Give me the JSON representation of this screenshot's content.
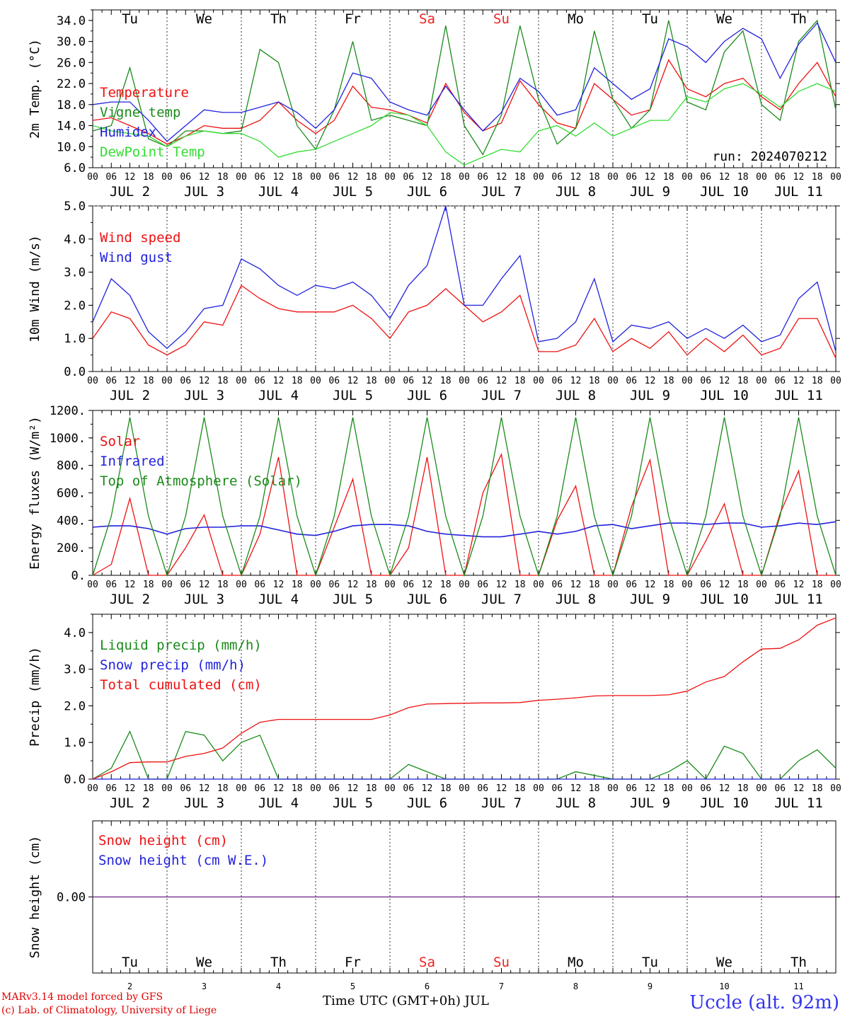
{
  "colors": {
    "temp": "#ee1111",
    "vigne": "#1a8a1a",
    "humidex": "#2222dd",
    "dewpoint": "#33dd33",
    "weekend": "#ee2222",
    "snow_line": "#7a3a8a"
  },
  "chart_data": [
    {
      "type": "line",
      "id": "temp",
      "ylabel": "2m Temp. (°C)",
      "ylim": [
        6.0,
        36.0
      ],
      "yticks": [
        "34.0",
        "30.0",
        "26.0",
        "22.0",
        "18.0",
        "14.0",
        "10.0",
        "6.0"
      ],
      "ytick_values": [
        34,
        30,
        26,
        22,
        18,
        14,
        10,
        6
      ],
      "x_unit": "hours since 00 UTC JUL 2",
      "x": [
        0,
        6,
        12,
        18,
        24,
        30,
        36,
        42,
        48,
        54,
        60,
        66,
        72,
        78,
        84,
        90,
        96,
        102,
        108,
        114,
        120,
        126,
        132,
        138,
        144,
        150,
        156,
        162,
        168,
        174,
        180,
        186,
        192,
        198,
        204,
        210,
        216,
        222,
        228,
        234,
        240
      ],
      "annotation": "run: 2024070212",
      "series": [
        {
          "name": "Temperature",
          "color": "#ee1111",
          "values": [
            15.0,
            15.5,
            14.0,
            12.5,
            10.5,
            12.0,
            14.0,
            13.5,
            13.5,
            15.0,
            18.5,
            15.0,
            12.5,
            15.0,
            21.5,
            17.5,
            17.0,
            16.0,
            14.5,
            22.0,
            16.5,
            13.0,
            14.5,
            22.5,
            18.0,
            14.5,
            13.5,
            22.0,
            19.0,
            16.0,
            17.0,
            26.5,
            21.0,
            19.5,
            22.0,
            23.0,
            19.5,
            17.0,
            22.0,
            26.0,
            19.5
          ]
        },
        {
          "name": "Vigne temp",
          "color": "#1a8a1a",
          "values": [
            13.0,
            14.0,
            25.0,
            11.5,
            10.0,
            13.0,
            13.0,
            12.5,
            13.0,
            28.5,
            26.0,
            14.0,
            9.5,
            17.0,
            30.0,
            15.0,
            16.0,
            15.0,
            14.0,
            33.0,
            14.0,
            8.5,
            16.0,
            33.0,
            19.0,
            10.5,
            13.5,
            32.0,
            19.0,
            13.5,
            17.0,
            34.0,
            18.5,
            17.0,
            28.0,
            32.0,
            18.0,
            15.0,
            30.0,
            34.0,
            17.0
          ]
        },
        {
          "name": "Humidex",
          "color": "#2222dd",
          "values": [
            18.0,
            18.5,
            18.5,
            15.0,
            11.0,
            14.0,
            17.0,
            16.5,
            16.5,
            17.5,
            18.5,
            16.5,
            13.5,
            17.0,
            24.0,
            23.0,
            18.5,
            17.0,
            16.0,
            21.5,
            17.0,
            13.0,
            16.5,
            23.0,
            20.5,
            16.0,
            17.0,
            25.0,
            22.0,
            19.0,
            21.0,
            30.5,
            29.0,
            26.0,
            30.0,
            32.5,
            30.5,
            23.0,
            29.5,
            33.5,
            26.0
          ]
        },
        {
          "name": "DewPoint Temp",
          "color": "#33dd33",
          "values": [
            14.0,
            13.0,
            12.5,
            12.0,
            10.0,
            12.0,
            13.0,
            12.5,
            12.5,
            11.0,
            8.0,
            9.0,
            9.5,
            11.0,
            12.5,
            14.0,
            16.5,
            16.0,
            14.0,
            9.0,
            6.5,
            8.0,
            9.5,
            9.0,
            13.0,
            14.0,
            12.0,
            14.5,
            12.0,
            13.5,
            15.0,
            15.0,
            19.5,
            18.5,
            21.0,
            22.0,
            20.0,
            17.5,
            20.5,
            22.0,
            20.5
          ]
        }
      ],
      "day_names": [
        "Tu",
        "We",
        "Th",
        "Fr",
        "Sa",
        "Su",
        "Mo",
        "Tu",
        "We",
        "Th"
      ],
      "weekend_days": [
        "Sa",
        "Su"
      ],
      "date_labels": [
        "JUL  2",
        "JUL  3",
        "JUL  4",
        "JUL  5",
        "JUL  6",
        "JUL  7",
        "JUL  8",
        "JUL  9",
        "JUL 10",
        "JUL 11"
      ],
      "hour_labels": [
        "00",
        "06",
        "12",
        "18"
      ]
    },
    {
      "type": "line",
      "id": "wind",
      "ylabel": "10m Wind (m/s)",
      "ylim": [
        0.0,
        5.0
      ],
      "yticks": [
        "5.0",
        "4.0",
        "3.0",
        "2.0",
        "1.0",
        "0.0"
      ],
      "ytick_values": [
        5,
        4,
        3,
        2,
        1,
        0
      ],
      "x": [
        0,
        6,
        12,
        18,
        24,
        30,
        36,
        42,
        48,
        54,
        60,
        66,
        72,
        78,
        84,
        90,
        96,
        102,
        108,
        114,
        120,
        126,
        132,
        138,
        144,
        150,
        156,
        162,
        168,
        174,
        180,
        186,
        192,
        198,
        204,
        210,
        216,
        222,
        228,
        234,
        240
      ],
      "series": [
        {
          "name": "Wind speed",
          "color": "#ee1111",
          "values": [
            1.0,
            1.8,
            1.6,
            0.8,
            0.5,
            0.8,
            1.5,
            1.4,
            2.6,
            2.2,
            1.9,
            1.8,
            1.8,
            1.8,
            2.0,
            1.6,
            1.0,
            1.8,
            2.0,
            2.5,
            2.0,
            1.5,
            1.8,
            2.3,
            0.6,
            0.6,
            0.8,
            1.6,
            0.6,
            1.0,
            0.7,
            1.2,
            0.5,
            1.0,
            0.6,
            1.1,
            0.5,
            0.7,
            1.6,
            1.6,
            0.4
          ]
        },
        {
          "name": "Wind gust",
          "color": "#2222dd",
          "values": [
            1.5,
            2.8,
            2.3,
            1.2,
            0.7,
            1.2,
            1.9,
            2.0,
            3.4,
            3.1,
            2.6,
            2.3,
            2.6,
            2.5,
            2.7,
            2.3,
            1.6,
            2.6,
            3.2,
            5.0,
            2.0,
            2.0,
            2.8,
            3.5,
            0.9,
            1.0,
            1.5,
            2.8,
            0.9,
            1.4,
            1.3,
            1.5,
            1.0,
            1.3,
            1.0,
            1.4,
            0.9,
            1.1,
            2.2,
            2.7,
            0.6
          ]
        }
      ],
      "date_labels": [
        "JUL  2",
        "JUL  3",
        "JUL  4",
        "JUL  5",
        "JUL  6",
        "JUL  7",
        "JUL  8",
        "JUL  9",
        "JUL 10",
        "JUL 11"
      ],
      "hour_labels": [
        "00",
        "06",
        "12",
        "18"
      ]
    },
    {
      "type": "line",
      "id": "energy",
      "ylabel": "Energy fluxes (W/m²)",
      "ylim": [
        0,
        1200
      ],
      "yticks": [
        "1200.",
        "1000.",
        "800.",
        "600.",
        "400.",
        "200.",
        "0."
      ],
      "ytick_values": [
        1200,
        1000,
        800,
        600,
        400,
        200,
        0
      ],
      "x": [
        0,
        6,
        12,
        18,
        24,
        30,
        36,
        42,
        48,
        54,
        60,
        66,
        72,
        78,
        84,
        90,
        96,
        102,
        108,
        114,
        120,
        126,
        132,
        138,
        144,
        150,
        156,
        162,
        168,
        174,
        180,
        186,
        192,
        198,
        204,
        210,
        216,
        222,
        228,
        234,
        240
      ],
      "series": [
        {
          "name": "Solar",
          "color": "#ee1111",
          "values": [
            0,
            80,
            560,
            0,
            0,
            200,
            440,
            0,
            0,
            300,
            860,
            0,
            0,
            350,
            700,
            0,
            0,
            200,
            860,
            0,
            0,
            600,
            880,
            0,
            0,
            400,
            650,
            0,
            0,
            500,
            840,
            0,
            0,
            250,
            520,
            0,
            0,
            450,
            760,
            0,
            0
          ]
        },
        {
          "name": "Infrared",
          "color": "#2222dd",
          "values": [
            350,
            360,
            360,
            340,
            300,
            340,
            350,
            350,
            360,
            360,
            330,
            300,
            290,
            320,
            360,
            370,
            370,
            360,
            320,
            300,
            290,
            280,
            280,
            300,
            320,
            300,
            320,
            360,
            370,
            340,
            360,
            380,
            380,
            370,
            380,
            380,
            350,
            360,
            380,
            370,
            390
          ]
        },
        {
          "name": "Top of Atmosphere (Solar)",
          "color": "#1a8a1a",
          "values": [
            0,
            430,
            1150,
            430,
            0,
            430,
            1150,
            430,
            0,
            430,
            1150,
            430,
            0,
            430,
            1150,
            430,
            0,
            430,
            1150,
            430,
            0,
            430,
            1150,
            430,
            0,
            430,
            1150,
            430,
            0,
            430,
            1150,
            430,
            0,
            430,
            1150,
            430,
            0,
            430,
            1150,
            430,
            0
          ]
        }
      ],
      "date_labels": [
        "JUL  2",
        "JUL  3",
        "JUL  4",
        "JUL  5",
        "JUL  6",
        "JUL  7",
        "JUL  8",
        "JUL  9",
        "JUL 10",
        "JUL 11"
      ],
      "hour_labels": [
        "00",
        "06",
        "12",
        "18"
      ]
    },
    {
      "type": "line",
      "id": "precip",
      "ylabel": "Precip (mm/h)",
      "ylim": [
        0.0,
        4.5
      ],
      "yticks": [
        "4.0",
        "3.0",
        "2.0",
        "1.0",
        "0.0"
      ],
      "ytick_values": [
        4,
        3,
        2,
        1,
        0
      ],
      "x": [
        0,
        6,
        12,
        18,
        24,
        30,
        36,
        42,
        48,
        54,
        60,
        66,
        72,
        78,
        84,
        90,
        96,
        102,
        108,
        114,
        120,
        126,
        132,
        138,
        144,
        150,
        156,
        162,
        168,
        174,
        180,
        186,
        192,
        198,
        204,
        210,
        216,
        222,
        228,
        234,
        240
      ],
      "series": [
        {
          "name": "Liquid precip (mm/h)",
          "color": "#1a8a1a",
          "values": [
            0.0,
            0.3,
            1.3,
            0.0,
            0.0,
            1.3,
            1.2,
            0.5,
            1.0,
            1.2,
            0.0,
            0.0,
            0.0,
            0.0,
            0.0,
            0.0,
            0.0,
            0.4,
            0.2,
            0.0,
            0.0,
            0.0,
            0.0,
            0.0,
            0.0,
            0.0,
            0.2,
            0.1,
            0.0,
            0.0,
            0.0,
            0.2,
            0.5,
            0.0,
            0.9,
            0.7,
            0.0,
            0.0,
            0.5,
            0.8,
            0.3
          ]
        },
        {
          "name": "Snow precip (mm/h)",
          "color": "#2222dd",
          "values": [
            0,
            0,
            0,
            0,
            0,
            0,
            0,
            0,
            0,
            0,
            0,
            0,
            0,
            0,
            0,
            0,
            0,
            0,
            0,
            0,
            0,
            0,
            0,
            0,
            0,
            0,
            0,
            0,
            0,
            0,
            0,
            0,
            0,
            0,
            0,
            0,
            0,
            0,
            0,
            0,
            0
          ]
        },
        {
          "name": "Total cumulated (cm)",
          "color": "#ee1111",
          "values": [
            0.0,
            0.2,
            0.45,
            0.47,
            0.47,
            0.62,
            0.7,
            0.85,
            1.25,
            1.55,
            1.63,
            1.63,
            1.63,
            1.63,
            1.63,
            1.63,
            1.75,
            1.95,
            2.05,
            2.06,
            2.07,
            2.08,
            2.08,
            2.09,
            2.15,
            2.18,
            2.22,
            2.27,
            2.28,
            2.28,
            2.28,
            2.3,
            2.4,
            2.65,
            2.8,
            3.2,
            3.55,
            3.57,
            3.8,
            4.2,
            4.4
          ]
        }
      ],
      "date_labels": [
        "JUL  2",
        "JUL  3",
        "JUL  4",
        "JUL  5",
        "JUL  6",
        "JUL  7",
        "JUL  8",
        "JUL  9",
        "JUL 10",
        "JUL 11"
      ],
      "hour_labels": [
        "00",
        "06",
        "12",
        "18"
      ]
    },
    {
      "type": "line",
      "id": "snow",
      "ylabel": "Snow height (cm)",
      "ylim": [
        -1,
        1
      ],
      "yticks": [
        "0.00"
      ],
      "ytick_values": [
        0
      ],
      "x": [
        0,
        240
      ],
      "series": [
        {
          "name": "Snow height (cm)",
          "color": "#ee1111",
          "values": [
            0,
            0
          ]
        },
        {
          "name": "Snow height (cm W.E.)",
          "color": "#2222dd",
          "values": [
            0,
            0
          ]
        }
      ],
      "day_names": [
        "Tu",
        "We",
        "Th",
        "Fr",
        "Sa",
        "Su",
        "Mo",
        "Tu",
        "We",
        "Th"
      ],
      "weekend_days": [
        "Sa",
        "Su"
      ],
      "day_numbers": [
        "2",
        "3",
        "4",
        "5",
        "6",
        "7",
        "8",
        "9",
        "10",
        "11"
      ]
    }
  ],
  "footer": {
    "model_line": "MARv3.14 model forced by GFS",
    "lab_line": "(c) Lab. of Climatology, University of Liege",
    "xaxis_title": "Time UTC (GMT+0h) JUL",
    "station": "Uccle (alt. 92m)"
  }
}
